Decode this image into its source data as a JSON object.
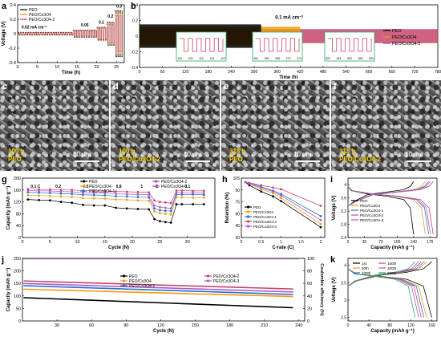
{
  "panels": {
    "a": {
      "letter": "a"
    },
    "b": {
      "letter": "b"
    },
    "c": {
      "letter": "c"
    },
    "d": {
      "letter": "d"
    },
    "e": {
      "letter": "e"
    },
    "f": {
      "letter": "f"
    },
    "g": {
      "letter": "g"
    },
    "h": {
      "letter": "h"
    },
    "i": {
      "letter": "i"
    },
    "j": {
      "letter": "j"
    },
    "k": {
      "letter": "k"
    }
  },
  "sem_images": [
    {
      "letter": "c",
      "time": "100 h",
      "label": "PEO",
      "scale": "10 μm"
    },
    {
      "letter": "d",
      "time": "100 h",
      "label": "PEO/Co3O4-2",
      "scale": "10 μm"
    },
    {
      "letter": "e",
      "time": "318 h",
      "label": "PEO",
      "scale": "10 μm"
    },
    {
      "letter": "f",
      "time": "318 h",
      "label": "PEO/Co3O4-2",
      "scale": "10 μm"
    }
  ],
  "colors": {
    "PEO": "#000000",
    "PEO/Co3O4": "#f39c12",
    "PEO/Co3O4-1": "#2f6dcc",
    "PEO/Co3O4-2": "#c4476b",
    "PEO/Co3O4-3": "#a75dc9"
  },
  "chart_data": [
    {
      "panel": "a",
      "type": "line",
      "xlabel": "Time (h)",
      "ylabel": "Voltage (V)",
      "xlim": [
        0,
        27
      ],
      "ylim": [
        -0.4,
        0.4
      ],
      "xticks": [
        0,
        5,
        10,
        15,
        20,
        25
      ],
      "yticks": [
        -0.4,
        -0.2,
        0.0,
        0.2,
        0.4
      ],
      "legend": [
        "PEO",
        "PEO/Co3O4",
        "PEO/Co3O4-2"
      ],
      "annotations": [
        "0.02 mA cm⁻²",
        "0.05",
        "0.1",
        "0.2",
        "0.3"
      ],
      "steps": [
        {
          "t0": 0,
          "t1": 14,
          "PEO": 0.02,
          "PEO/Co3O4": 0.015,
          "PEO/Co3O4-2": 0.012
        },
        {
          "t0": 14,
          "t1": 20,
          "PEO": 0.05,
          "PEO/Co3O4": 0.04,
          "PEO/Co3O4-2": 0.035
        },
        {
          "t0": 20,
          "t1": 22.5,
          "PEO": 0.09,
          "PEO/Co3O4": 0.08,
          "PEO/Co3O4-2": 0.07
        },
        {
          "t0": 22.5,
          "t1": 24.5,
          "PEO": 0.16,
          "PEO/Co3O4": 0.14,
          "PEO/Co3O4-2": 0.13
        },
        {
          "t0": 24.5,
          "t1": 26.5,
          "PEO": 0.32,
          "PEO/Co3O4": 0.28,
          "PEO/Co3O4-2": 0.25
        }
      ]
    },
    {
      "panel": "b",
      "type": "line",
      "xlabel": "Time (h)",
      "ylabel": "Voltage (V)",
      "xlim": [
        0,
        780
      ],
      "ylim": [
        -0.4,
        0.4
      ],
      "xticks": [
        0,
        60,
        120,
        180,
        240,
        300,
        360,
        420,
        480,
        540,
        600,
        660,
        720,
        780
      ],
      "yticks": [
        -0.4,
        -0.2,
        0.0,
        0.2,
        0.4
      ],
      "annotations": [
        "0.1 mA cm⁻²"
      ],
      "legend": [
        "PEO",
        "PEO/Co3O4",
        "PEO/Co3O4-2"
      ],
      "series": [
        {
          "name": "PEO",
          "x_end": 318,
          "amplitude": 0.15
        },
        {
          "name": "PEO/Co3O4",
          "x_end": 420,
          "amplitude": 0.12
        },
        {
          "name": "PEO/Co3O4-2",
          "x_end": 780,
          "amplitude": 0.09
        }
      ],
      "insets": [
        {
          "xticks": [
            "100",
            "105",
            "110",
            "115",
            "120"
          ]
        },
        {
          "xticks": [
            "264",
            "266",
            "268",
            "270",
            "272"
          ]
        },
        {
          "xticks": [
            "522",
            "524",
            "526",
            "528",
            "530"
          ]
        }
      ]
    },
    {
      "panel": "g",
      "type": "scatter",
      "xlabel": "Cycle (N)",
      "ylabel": "Capacity (mAh g⁻¹)",
      "xlim": [
        0,
        35
      ],
      "ylim": [
        0,
        200
      ],
      "xticks": [
        0,
        5,
        10,
        15,
        20,
        25,
        30
      ],
      "yticks": [
        0,
        40,
        80,
        120,
        160,
        200
      ],
      "rate_labels": [
        "0.1 C",
        "0.2",
        "0.5",
        "0.8",
        "1",
        "2",
        "0.1"
      ],
      "series": [
        {
          "name": "PEO",
          "x": [
            1,
            3,
            5,
            7,
            9,
            11,
            13,
            15,
            17,
            19,
            21,
            23,
            24,
            25,
            26,
            27,
            28,
            29,
            31,
            33
          ],
          "y": [
            128,
            126,
            125,
            120,
            117,
            110,
            108,
            108,
            100,
            98,
            96,
            95,
            62,
            55,
            52,
            50,
            112,
            112,
            112,
            112
          ]
        },
        {
          "name": "PEO/Co3O4",
          "x": [
            1,
            3,
            5,
            7,
            9,
            11,
            13,
            15,
            17,
            19,
            21,
            23,
            24,
            25,
            26,
            27,
            28,
            29,
            31,
            33
          ],
          "y": [
            142,
            141,
            140,
            138,
            137,
            133,
            132,
            131,
            128,
            127,
            125,
            124,
            88,
            82,
            80,
            78,
            135,
            135,
            134,
            134
          ]
        },
        {
          "name": "PEO/Co3O4-1",
          "x": [
            1,
            3,
            5,
            7,
            9,
            11,
            13,
            15,
            17,
            19,
            21,
            23,
            24,
            25,
            26,
            27,
            28,
            29,
            31,
            33
          ],
          "y": [
            152,
            151,
            150,
            148,
            147,
            144,
            143,
            142,
            139,
            138,
            136,
            135,
            98,
            92,
            90,
            89,
            145,
            145,
            145,
            144
          ]
        },
        {
          "name": "PEO/Co3O4-2",
          "x": [
            1,
            3,
            5,
            7,
            9,
            11,
            13,
            15,
            17,
            19,
            21,
            23,
            24,
            25,
            26,
            27,
            28,
            29,
            31,
            33
          ],
          "y": [
            163,
            162,
            162,
            161,
            160,
            158,
            157,
            157,
            155,
            154,
            153,
            152,
            125,
            120,
            118,
            116,
            158,
            158,
            157,
            157
          ]
        },
        {
          "name": "PEO/Co3O4-3",
          "x": [
            1,
            3,
            5,
            7,
            9,
            11,
            13,
            15,
            17,
            19,
            21,
            23,
            24,
            25,
            26,
            27,
            28,
            29,
            31,
            33
          ],
          "y": [
            158,
            157,
            157,
            155,
            154,
            151,
            150,
            150,
            147,
            146,
            145,
            144,
            108,
            102,
            100,
            98,
            152,
            151,
            151,
            150
          ]
        }
      ]
    },
    {
      "panel": "h",
      "type": "line",
      "xlabel": "C-rate (C)",
      "ylabel": "Retention (%)",
      "xlim": [
        0,
        2.1
      ],
      "ylim": [
        30,
        105
      ],
      "xticks": [
        0.0,
        0.5,
        1.0,
        1.5,
        2.0
      ],
      "yticks": [
        30,
        45,
        60,
        75,
        90,
        105
      ],
      "categories": [
        0.1,
        0.2,
        0.5,
        0.8,
        1,
        2
      ],
      "series": [
        {
          "name": "PEO",
          "values": [
            100,
            96,
            88,
            82,
            76,
            43
          ]
        },
        {
          "name": "PEO/Co3O4",
          "values": [
            100,
            98,
            91,
            86,
            80,
            47
          ]
        },
        {
          "name": "PEO/Co3O4-1",
          "values": [
            100,
            99,
            94,
            89,
            85,
            57
          ]
        },
        {
          "name": "PEO/Co3O4-2",
          "values": [
            100,
            99,
            96,
            93,
            91,
            70
          ]
        },
        {
          "name": "PEO/Co3O4-3",
          "values": [
            100,
            98,
            93,
            88,
            83,
            52
          ]
        }
      ]
    },
    {
      "panel": "i",
      "type": "line",
      "xlabel": "Capacity (mAh g⁻¹)",
      "ylabel": "Voltage (V)",
      "xlim": [
        0,
        190
      ],
      "ylim": [
        2.4,
        4.2
      ],
      "xticks": [
        0,
        35,
        70,
        105,
        140,
        175
      ],
      "yticks": [
        2.4,
        2.8,
        3.2,
        3.6,
        4.0
      ],
      "series": [
        {
          "name": "PEO",
          "capacity": 140
        },
        {
          "name": "PEO/Co3O4",
          "capacity": 165
        },
        {
          "name": "PEO/Co3O4-1",
          "capacity": 172
        },
        {
          "name": "PEO/Co3O4-2",
          "capacity": 182
        },
        {
          "name": "PEO/Co3O4-3",
          "capacity": 176
        }
      ]
    },
    {
      "panel": "j",
      "type": "scatter",
      "xlabel": "Cycle (N)",
      "ylabel": "Capacity (mAh g⁻¹)",
      "y2label": "Coulombic efficiency (%)",
      "xlim": [
        0,
        245
      ],
      "ylim": [
        0,
        250
      ],
      "y2lim": [
        0,
        100
      ],
      "xticks": [
        30,
        60,
        90,
        120,
        150,
        180,
        210,
        240
      ],
      "yticks": [
        0,
        50,
        100,
        150,
        200,
        250
      ],
      "y2ticks": [
        0,
        20,
        40,
        60,
        80,
        100
      ],
      "series": [
        {
          "name": "PEO",
          "start": 93,
          "end": 52
        },
        {
          "name": "PEO/Co3O4",
          "start": 127,
          "end": 97
        },
        {
          "name": "PEO/Co3O4-1",
          "start": 141,
          "end": 105
        },
        {
          "name": "PEO/Co3O4-2",
          "start": 160,
          "end": 127
        },
        {
          "name": "PEO/Co3O4-3",
          "start": 150,
          "end": 115
        }
      ],
      "coulombic_efficiency": 99
    },
    {
      "panel": "k",
      "type": "line",
      "xlabel": "Capacity (mAh g⁻¹)",
      "ylabel": "Voltage (V)",
      "xlim": [
        0,
        170
      ],
      "ylim": [
        2.4,
        4.2
      ],
      "xticks": [
        0,
        40,
        80,
        120,
        160
      ],
      "yticks": [
        2.5,
        3.0,
        3.5,
        4.0
      ],
      "series": [
        {
          "name": "1st",
          "capacity": 160,
          "color": "#000000"
        },
        {
          "name": "50th",
          "capacity": 150,
          "color": "#f39c12"
        },
        {
          "name": "100th",
          "capacity": 145,
          "color": "#2f6dcc"
        },
        {
          "name": "150th",
          "capacity": 140,
          "color": "#c4476b"
        },
        {
          "name": "200th",
          "capacity": 135,
          "color": "#a75dc9"
        },
        {
          "name": "250th",
          "capacity": 128,
          "color": "#27ae60"
        }
      ]
    }
  ]
}
